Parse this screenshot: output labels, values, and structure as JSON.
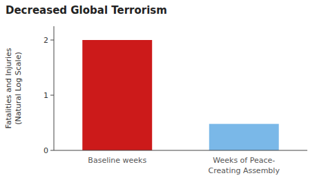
{
  "chart_data": {
    "type": "bar",
    "title": "Decreased Global Terrorism",
    "ylabel": "Fatalities and Injuries\n(Natural Log Scale)",
    "categories": [
      "Baseline weeks",
      "Weeks of Peace-\nCreating Assembly"
    ],
    "values": [
      2.0,
      0.48
    ],
    "colors": [
      "#cc1a1a",
      "#7ab8e8"
    ],
    "ylim": [
      0,
      2.25
    ],
    "yticks": [
      0,
      1,
      2
    ]
  }
}
